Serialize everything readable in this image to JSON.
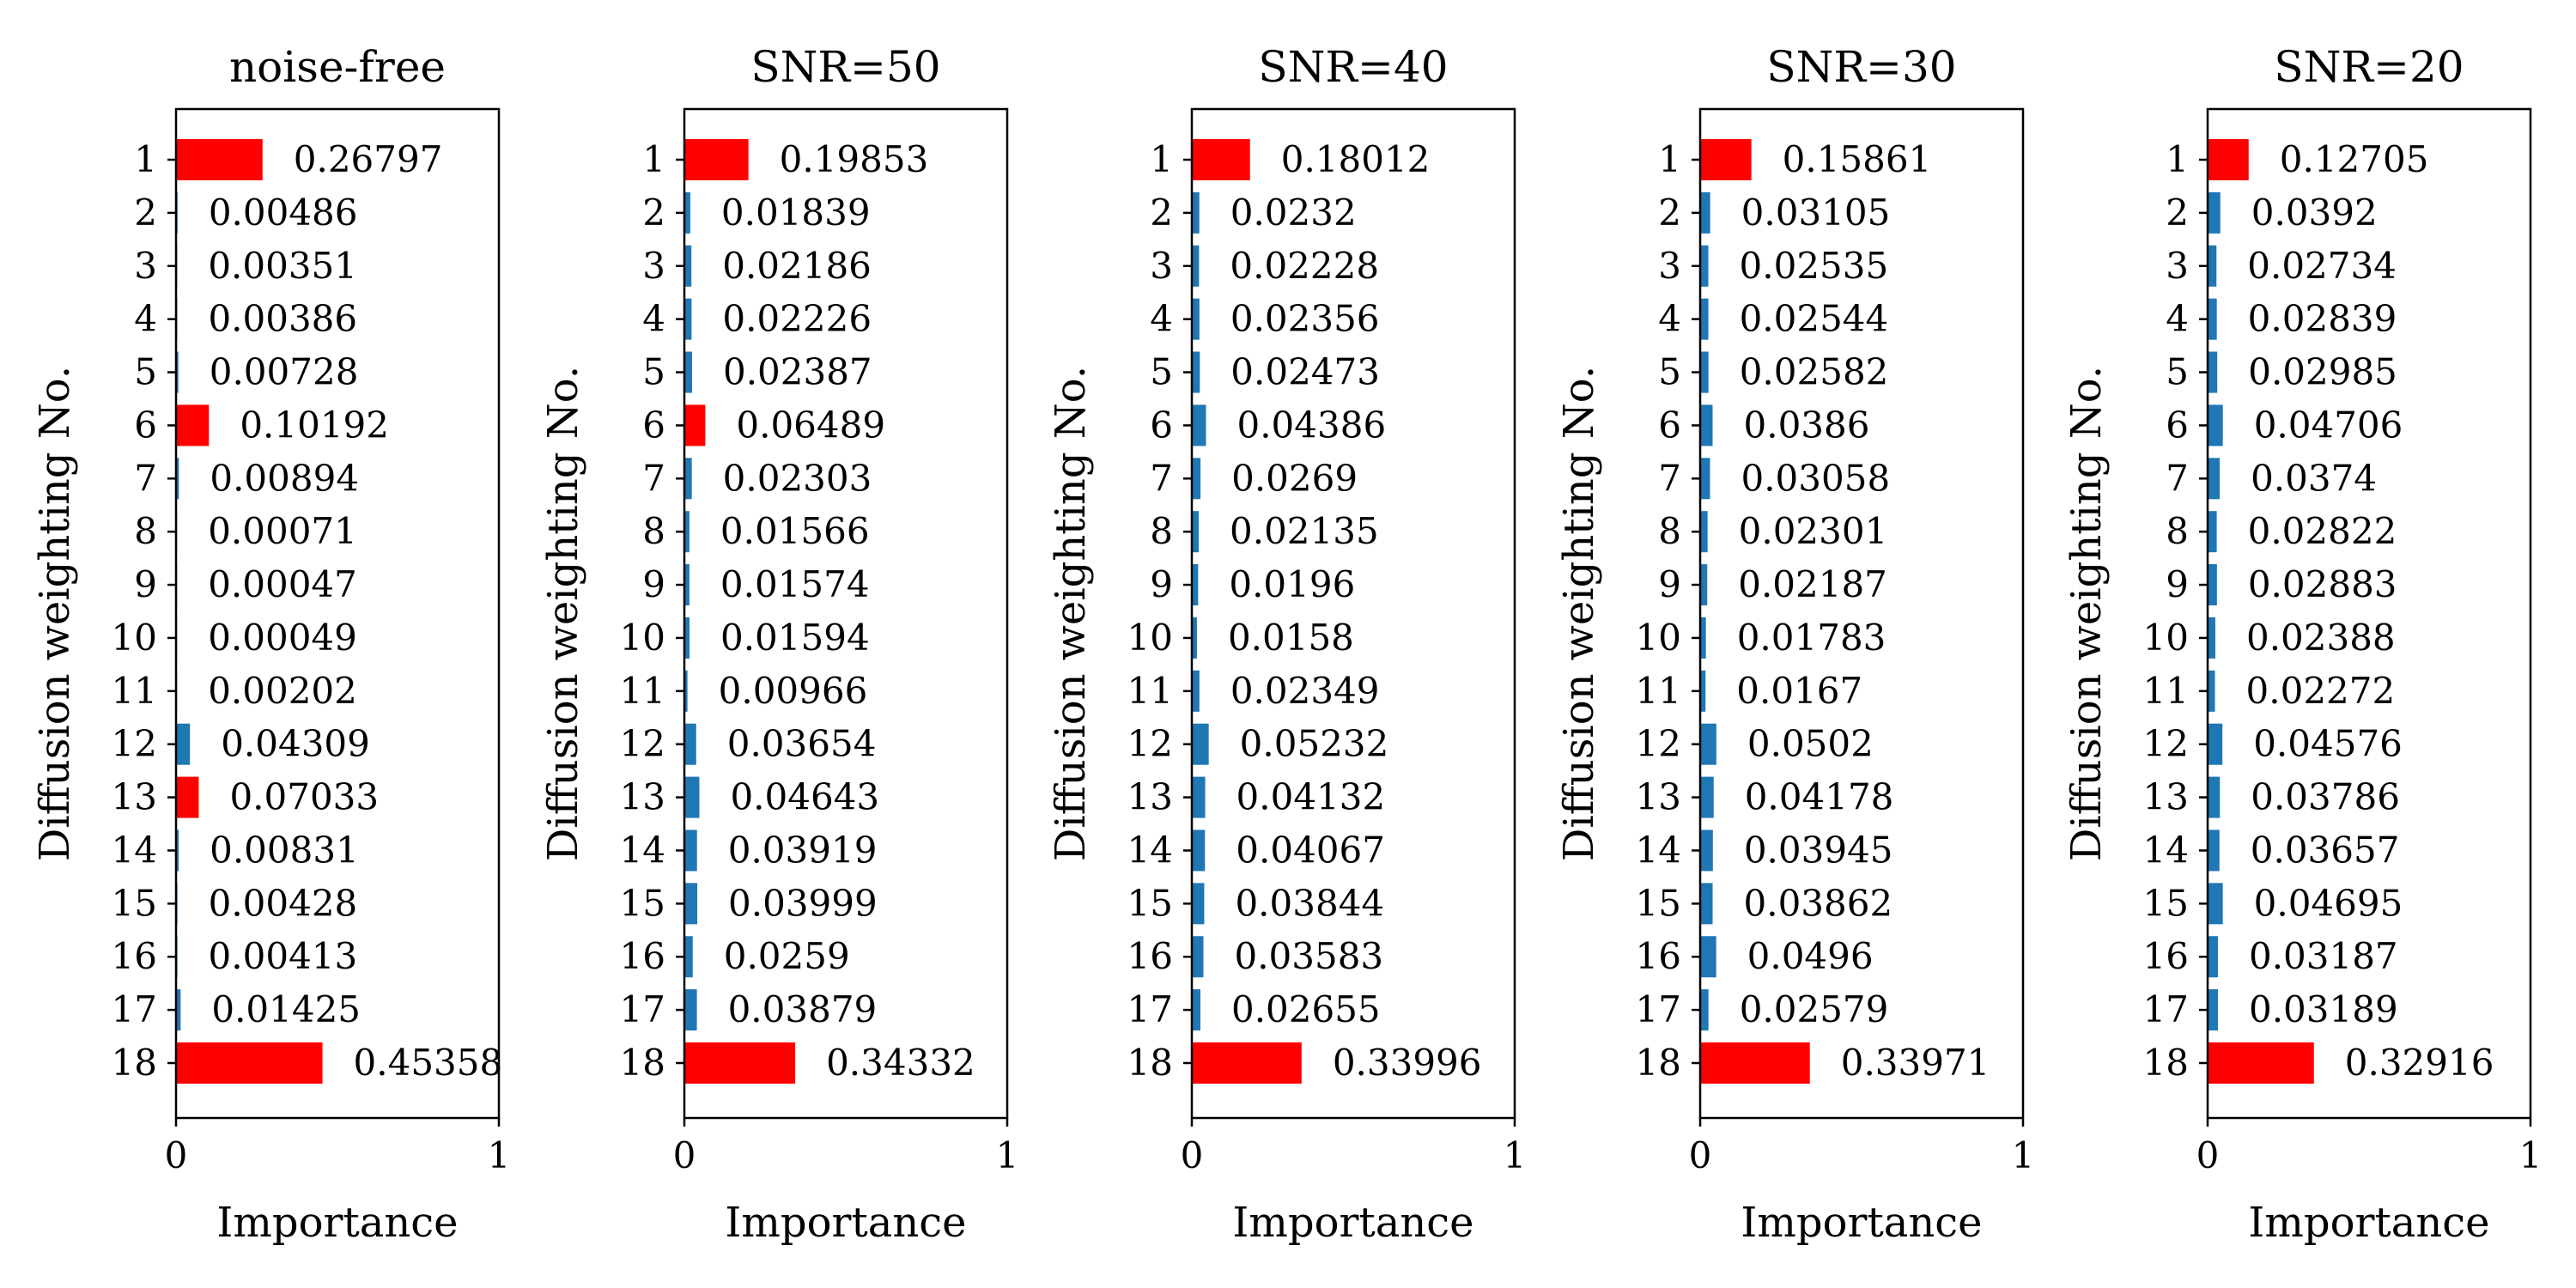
{
  "chart_data": {
    "type": "bar",
    "orientation": "horizontal",
    "categories": [
      "1",
      "2",
      "3",
      "4",
      "5",
      "6",
      "7",
      "8",
      "9",
      "10",
      "11",
      "12",
      "13",
      "14",
      "15",
      "16",
      "17",
      "18"
    ],
    "xlabel": "Importance",
    "ylabel": "Diffusion weighting No.",
    "xlim": [
      0,
      1
    ],
    "xticks": [
      "0",
      "1"
    ],
    "highlight_color": "#ff0000",
    "base_color": "#1f77b4",
    "panels": [
      {
        "title": "noise-free",
        "values": [
          0.26797,
          0.00486,
          0.00351,
          0.00386,
          0.00728,
          0.10192,
          0.00894,
          0.00071,
          0.00047,
          0.00049,
          0.00202,
          0.04309,
          0.07033,
          0.00831,
          0.00428,
          0.00413,
          0.01425,
          0.45358
        ],
        "labels": [
          "0.26797",
          "0.00486",
          "0.00351",
          "0.00386",
          "0.00728",
          "0.10192",
          "0.00894",
          "0.00071",
          "0.00047",
          "0.00049",
          "0.00202",
          "0.04309",
          "0.07033",
          "0.00831",
          "0.00428",
          "0.00413",
          "0.01425",
          "0.45358"
        ],
        "highlight": [
          1,
          6,
          13,
          18
        ]
      },
      {
        "title": "SNR=50",
        "values": [
          0.19853,
          0.01839,
          0.02186,
          0.02226,
          0.02387,
          0.06489,
          0.02303,
          0.01566,
          0.01574,
          0.01594,
          0.00966,
          0.03654,
          0.04643,
          0.03919,
          0.03999,
          0.0259,
          0.03879,
          0.34332
        ],
        "labels": [
          "0.19853",
          "0.01839",
          "0.02186",
          "0.02226",
          "0.02387",
          "0.06489",
          "0.02303",
          "0.01566",
          "0.01574",
          "0.01594",
          "0.00966",
          "0.03654",
          "0.04643",
          "0.03919",
          "0.03999",
          "0.0259",
          "0.03879",
          "0.34332"
        ],
        "highlight": [
          1,
          6,
          18
        ]
      },
      {
        "title": "SNR=40",
        "values": [
          0.18012,
          0.0232,
          0.02228,
          0.02356,
          0.02473,
          0.04386,
          0.0269,
          0.02135,
          0.0196,
          0.0158,
          0.02349,
          0.05232,
          0.04132,
          0.04067,
          0.03844,
          0.03583,
          0.02655,
          0.33996
        ],
        "labels": [
          "0.18012",
          "0.0232",
          "0.02228",
          "0.02356",
          "0.02473",
          "0.04386",
          "0.0269",
          "0.02135",
          "0.0196",
          "0.0158",
          "0.02349",
          "0.05232",
          "0.04132",
          "0.04067",
          "0.03844",
          "0.03583",
          "0.02655",
          "0.33996"
        ],
        "highlight": [
          1,
          18
        ]
      },
      {
        "title": "SNR=30",
        "values": [
          0.15861,
          0.03105,
          0.02535,
          0.02544,
          0.02582,
          0.0386,
          0.03058,
          0.02301,
          0.02187,
          0.01783,
          0.0167,
          0.0502,
          0.04178,
          0.03945,
          0.03862,
          0.0496,
          0.02579,
          0.33971
        ],
        "labels": [
          "0.15861",
          "0.03105",
          "0.02535",
          "0.02544",
          "0.02582",
          "0.0386",
          "0.03058",
          "0.02301",
          "0.02187",
          "0.01783",
          "0.0167",
          "0.0502",
          "0.04178",
          "0.03945",
          "0.03862",
          "0.0496",
          "0.02579",
          "0.33971"
        ],
        "highlight": [
          1,
          18
        ]
      },
      {
        "title": "SNR=20",
        "values": [
          0.12705,
          0.0392,
          0.02734,
          0.02839,
          0.02985,
          0.04706,
          0.0374,
          0.02822,
          0.02883,
          0.02388,
          0.02272,
          0.04576,
          0.03786,
          0.03657,
          0.04695,
          0.03187,
          0.03189,
          0.32916
        ],
        "labels": [
          "0.12705",
          "0.0392",
          "0.02734",
          "0.02839",
          "0.02985",
          "0.04706",
          "0.0374",
          "0.02822",
          "0.02883",
          "0.02388",
          "0.02272",
          "0.04576",
          "0.03786",
          "0.03657",
          "0.04695",
          "0.03187",
          "0.03189",
          "0.32916"
        ],
        "highlight": [
          1,
          18
        ]
      }
    ]
  }
}
